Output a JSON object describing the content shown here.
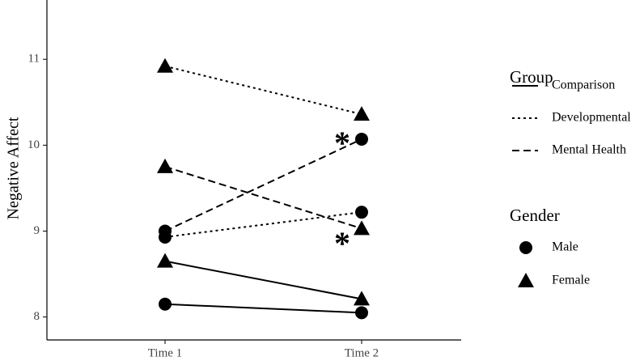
{
  "chart_data": {
    "type": "line",
    "y_label": "Negative Affect",
    "categories": [
      "Time 1",
      "Time 2"
    ],
    "ylim": [
      7.78,
      11.69
    ],
    "yticks": [
      8,
      9,
      10,
      11
    ],
    "color": "#000000",
    "legend_position": "right",
    "group_title": "Group",
    "groups": [
      {
        "name": "Comparison",
        "dash": "solid"
      },
      {
        "name": "Developmental",
        "dash": "dotted"
      },
      {
        "name": "Mental Health",
        "dash": "dashed"
      }
    ],
    "gender_title": "Gender",
    "genders": [
      {
        "name": "Male",
        "marker": "circle"
      },
      {
        "name": "Female",
        "marker": "triangle"
      }
    ],
    "series": [
      {
        "group": 0,
        "gender": 0,
        "values": [
          8.15,
          8.05
        ]
      },
      {
        "group": 0,
        "gender": 1,
        "values": [
          8.65,
          8.21
        ]
      },
      {
        "group": 1,
        "gender": 0,
        "values": [
          8.93,
          9.22
        ]
      },
      {
        "group": 1,
        "gender": 1,
        "values": [
          10.92,
          10.36
        ]
      },
      {
        "group": 2,
        "gender": 0,
        "values": [
          9.0,
          10.07
        ]
      },
      {
        "group": 2,
        "gender": 1,
        "values": [
          9.75,
          9.03
        ]
      }
    ],
    "annotations": [
      {
        "text": "*",
        "category": 1,
        "y": 10.1
      },
      {
        "text": "*",
        "category": 1,
        "y": 8.93
      }
    ]
  }
}
